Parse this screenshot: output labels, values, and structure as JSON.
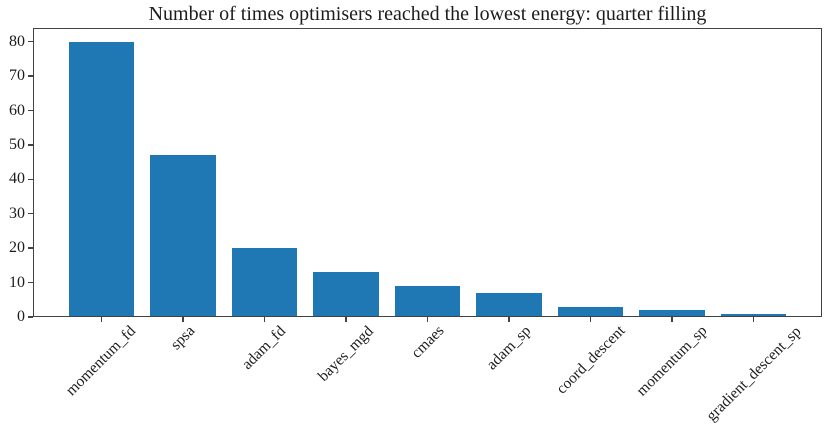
{
  "chart_data": {
    "type": "bar",
    "title": "Number of times optimisers reached the lowest energy: quarter filling",
    "categories": [
      "momentum_fd",
      "spsa",
      "adam_fd",
      "bayes_mgd",
      "cmaes",
      "adam_sp",
      "coord_descent",
      "momentum_sp",
      "gradient_descent_sp"
    ],
    "values": [
      80,
      47,
      20,
      13,
      9,
      7,
      3,
      2,
      1
    ],
    "xlabel": "",
    "ylabel": "",
    "ylim": [
      0,
      84
    ],
    "yticks": [
      0,
      10,
      20,
      30,
      40,
      50,
      60,
      70,
      80
    ],
    "bar_color": "#1f77b4",
    "axis_color": "#424242",
    "text_color": "#1c1c1c",
    "grid": false,
    "legend_position": "none",
    "xtick_label_rotation_deg": 45
  }
}
